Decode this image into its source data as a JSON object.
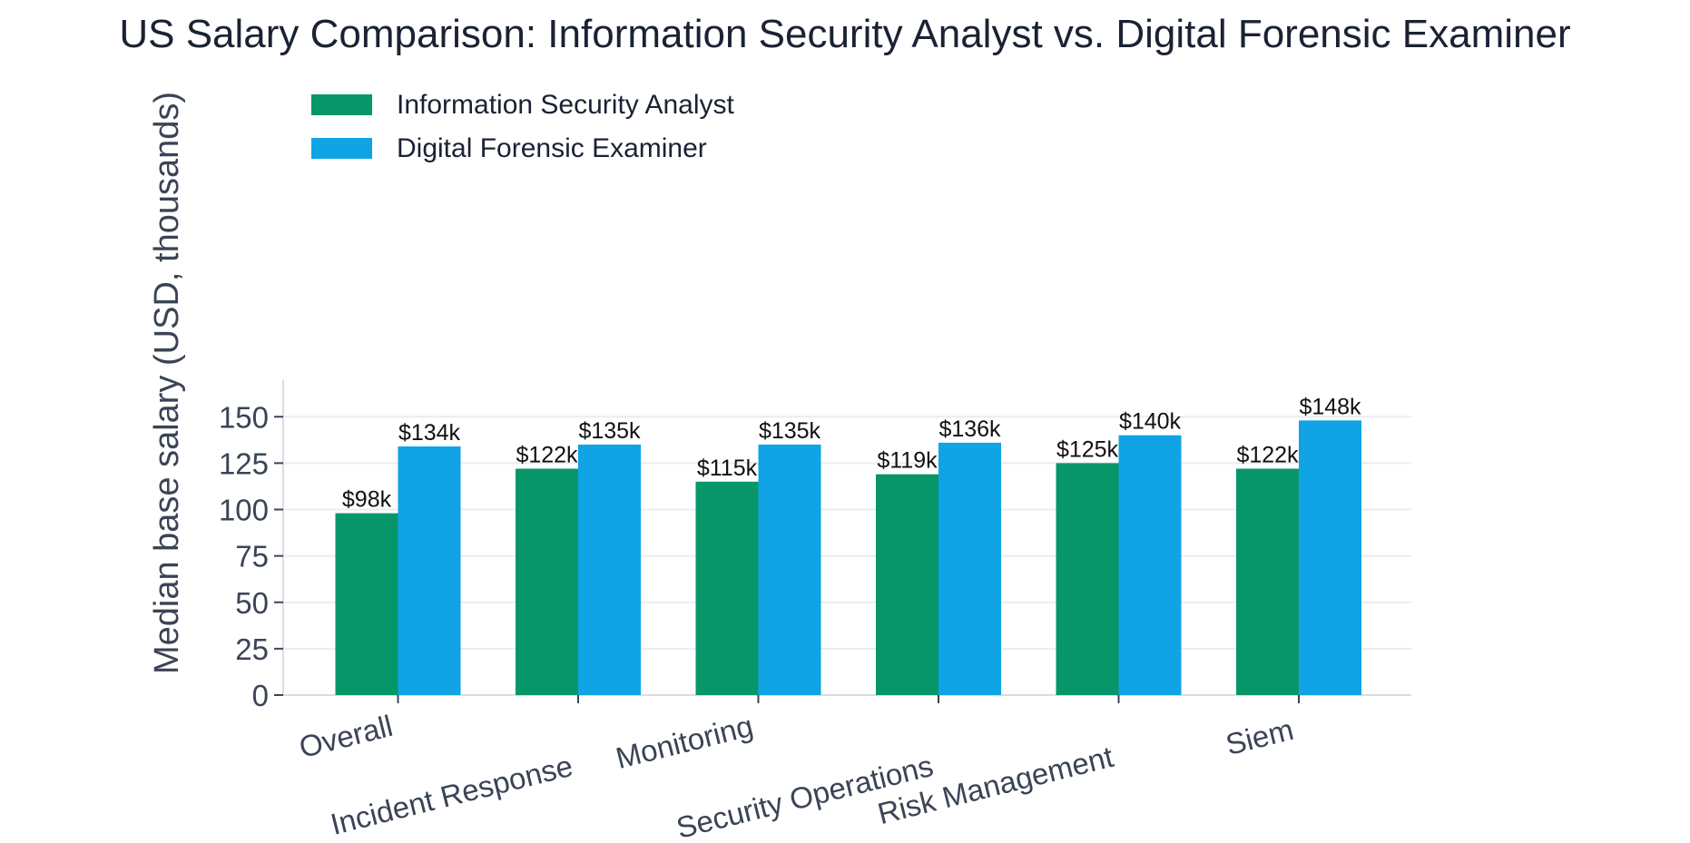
{
  "chart_data": {
    "type": "bar",
    "title": "US Salary Comparison: Information Security Analyst vs. Digital Forensic Examiner",
    "xlabel": "",
    "ylabel": "Median base salary (USD, thousands)",
    "ylim": [
      0,
      170
    ],
    "yticks": [
      0,
      25,
      50,
      75,
      100,
      125,
      150
    ],
    "grid": "horizontal",
    "legend_position": "top-left",
    "categories": [
      "Overall",
      "Incident Response",
      "Monitoring",
      "Security Operations",
      "Risk Management",
      "Siem"
    ],
    "series": [
      {
        "name": "Information Security Analyst",
        "color": "#079669",
        "values": [
          98,
          122,
          115,
          119,
          125,
          122
        ],
        "labels": [
          "$98k",
          "$122k",
          "$115k",
          "$119k",
          "$125k",
          "$122k"
        ]
      },
      {
        "name": "Digital Forensic Examiner",
        "color": "#10a3e6",
        "values": [
          134,
          135,
          135,
          136,
          140,
          148
        ],
        "labels": [
          "$134k",
          "$135k",
          "$135k",
          "$136k",
          "$140k",
          "$148k"
        ]
      }
    ]
  }
}
